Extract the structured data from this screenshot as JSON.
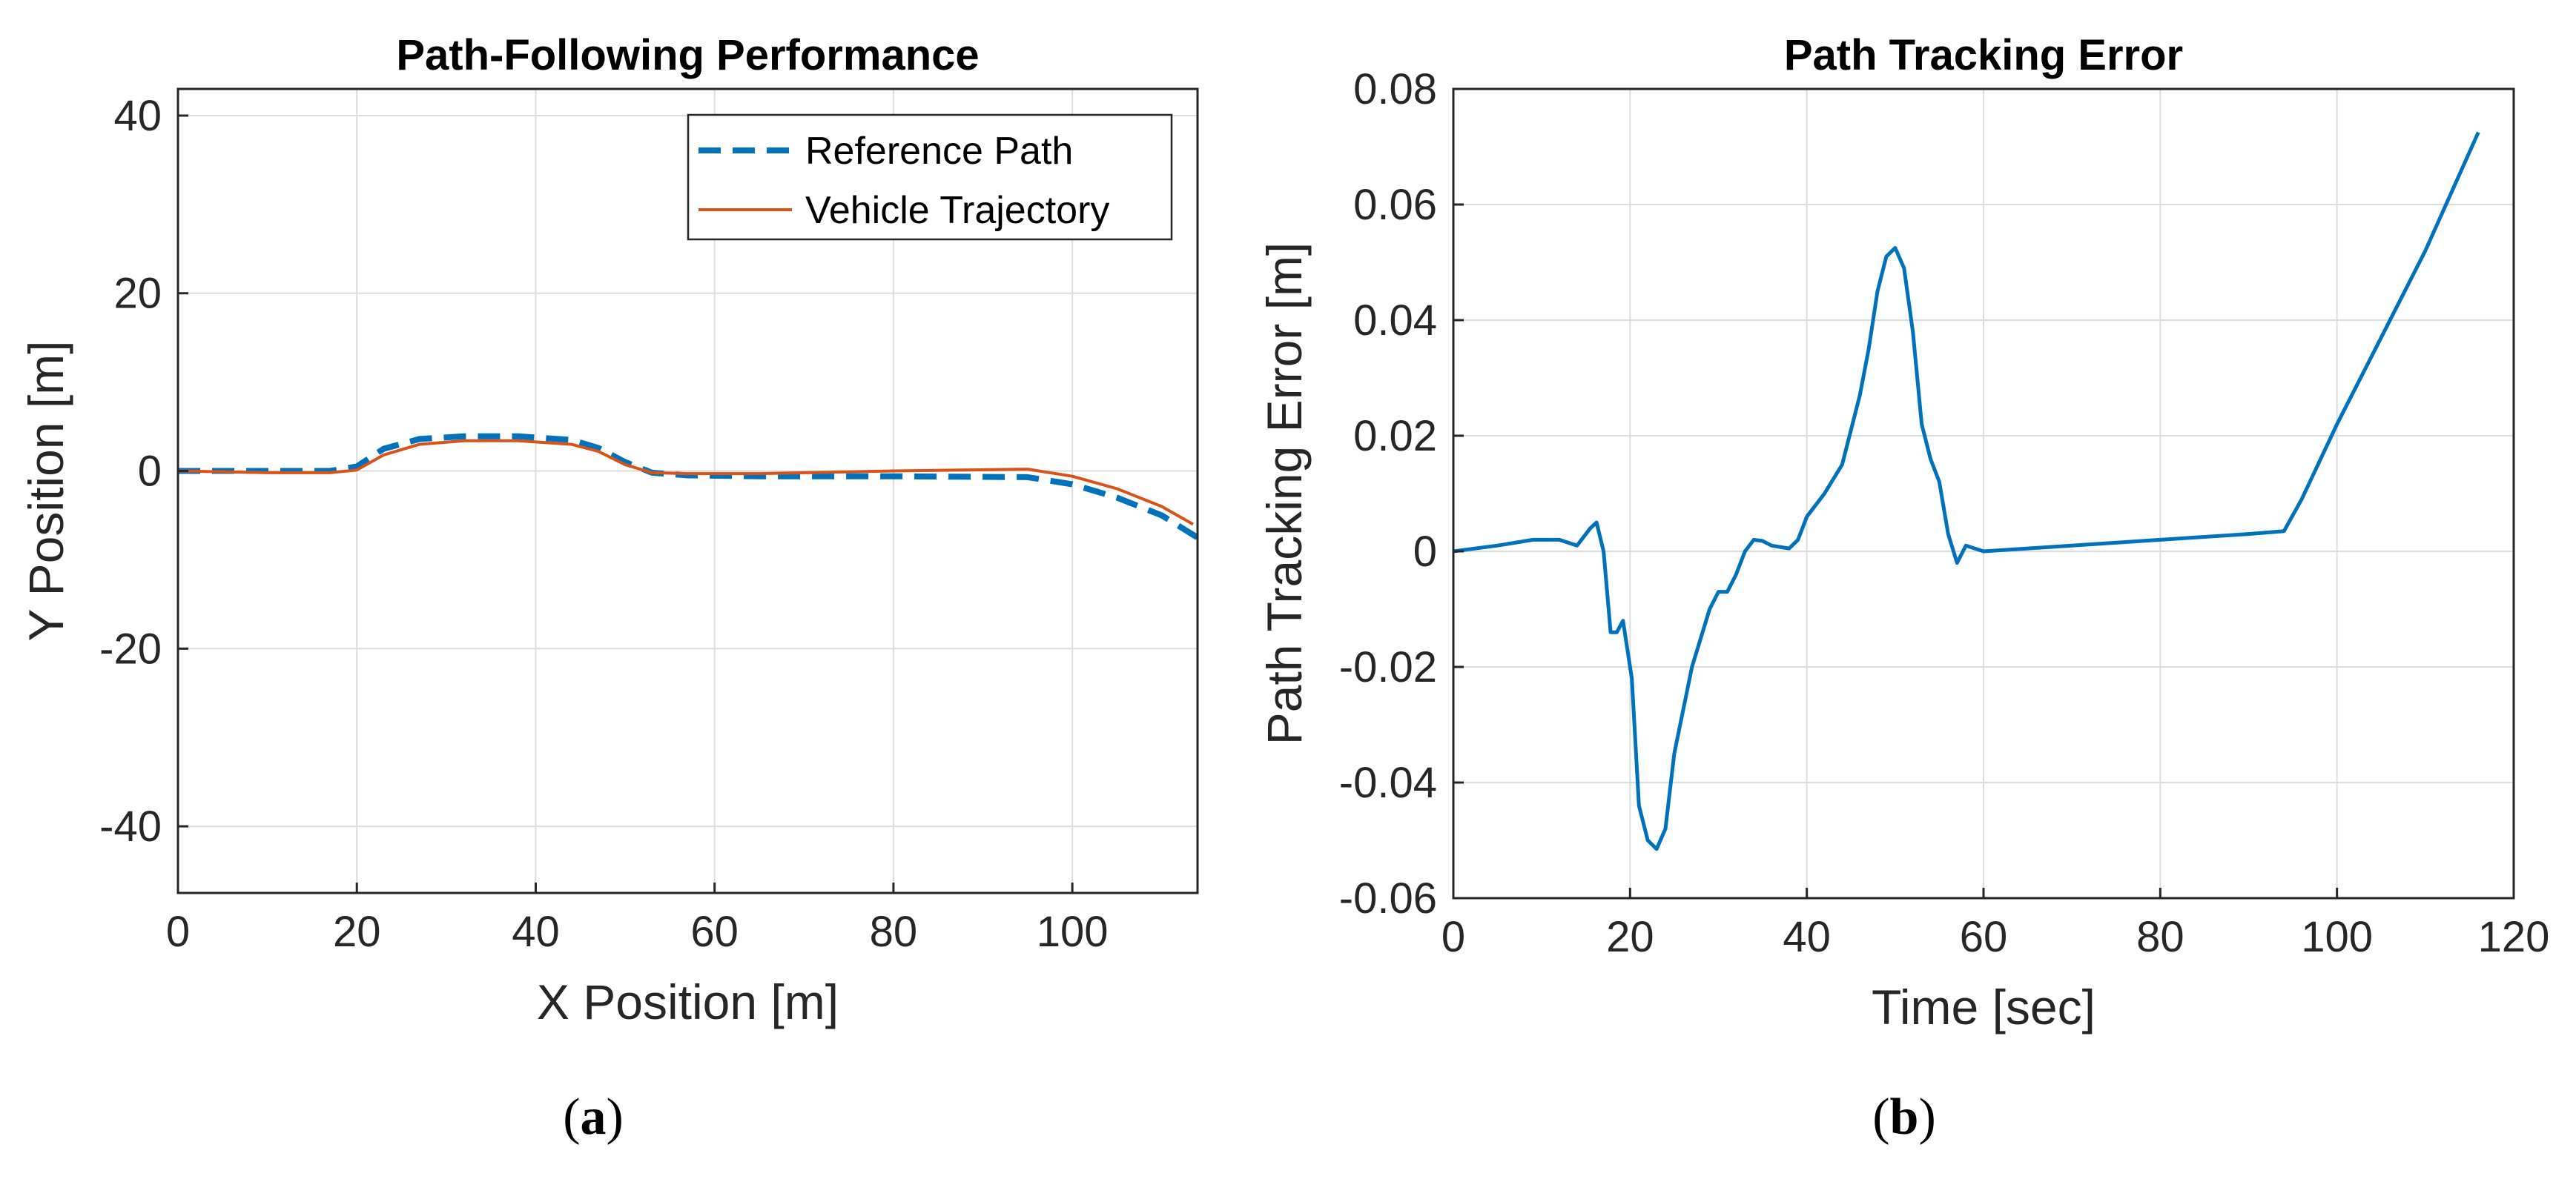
{
  "colors": {
    "reference": "#0072BD",
    "trajectory": "#D95319",
    "error": "#0072BD"
  },
  "panels": {
    "a": {
      "label": "a"
    },
    "b": {
      "label": "b"
    }
  },
  "chart_data": [
    {
      "type": "line",
      "title": "Path-Following Performance",
      "xlabel": "X Position [m]",
      "ylabel": "Y Position [m]",
      "xlim": [
        0,
        114
      ],
      "ylim": [
        -47.5,
        43
      ],
      "xticks": [
        0,
        20,
        40,
        60,
        80,
        100
      ],
      "yticks": [
        -40,
        -20,
        0,
        20,
        40
      ],
      "xtick_labels": [
        "0",
        "20",
        "40",
        "60",
        "80",
        "100"
      ],
      "ytick_labels": [
        "-40",
        "-20",
        "0",
        "20",
        "40"
      ],
      "grid": true,
      "legend_position": "top-right",
      "series": [
        {
          "name": "Reference Path",
          "style": "dashed",
          "x": [
            0,
            10,
            17,
            20,
            23,
            27,
            32,
            38,
            44,
            47,
            50,
            53,
            57,
            65,
            80,
            95,
            100,
            105,
            110,
            114
          ],
          "y": [
            0,
            0,
            0,
            0.5,
            2.5,
            3.6,
            3.9,
            3.9,
            3.5,
            2.6,
            1,
            -0.2,
            -0.5,
            -0.6,
            -0.6,
            -0.7,
            -1.5,
            -3,
            -5,
            -7.5
          ]
        },
        {
          "name": "Vehicle Trajectory",
          "style": "solid",
          "x": [
            0,
            10,
            17,
            20,
            23,
            27,
            32,
            38,
            44,
            47,
            50,
            53,
            57,
            65,
            80,
            95,
            100,
            105,
            110,
            113.5
          ],
          "y": [
            0,
            -0.2,
            -0.2,
            0.1,
            1.8,
            3.0,
            3.4,
            3.4,
            3.0,
            2.2,
            0.7,
            -0.2,
            -0.3,
            -0.3,
            0.0,
            0.2,
            -0.6,
            -2.0,
            -4.0,
            -6.0
          ]
        }
      ]
    },
    {
      "type": "line",
      "title": "Path Tracking Error",
      "xlabel": "Time [sec]",
      "ylabel": "Path Tracking Error [m]",
      "xlim": [
        0,
        120
      ],
      "ylim": [
        -0.06,
        0.08
      ],
      "xticks": [
        0,
        20,
        40,
        60,
        80,
        100,
        120
      ],
      "yticks": [
        -0.06,
        -0.04,
        -0.02,
        0,
        0.02,
        0.04,
        0.06,
        0.08
      ],
      "xtick_labels": [
        "0",
        "20",
        "40",
        "60",
        "80",
        "100",
        "120"
      ],
      "ytick_labels": [
        "-0.06",
        "-0.04",
        "-0.02",
        "0",
        "0.02",
        "0.04",
        "0.06",
        "0.08"
      ],
      "grid": true,
      "series": [
        {
          "name": "Path Tracking Error",
          "x": [
            0,
            5,
            9,
            12,
            14,
            15.5,
            16.2,
            17,
            17.8,
            18.5,
            19.2,
            20.2,
            21,
            22,
            23,
            24,
            25,
            27,
            29,
            30,
            31,
            32,
            33,
            34,
            35,
            36,
            38,
            39,
            40,
            42,
            44,
            46,
            47,
            48,
            49,
            50,
            51,
            52,
            53,
            54,
            55,
            56,
            57,
            58,
            60,
            65,
            70,
            80,
            90,
            94,
            96,
            100,
            105,
            110,
            116
          ],
          "y": [
            0,
            0.001,
            0.002,
            0.002,
            0.001,
            0.004,
            0.005,
            0.0,
            -0.014,
            -0.014,
            -0.012,
            -0.022,
            -0.044,
            -0.05,
            -0.0515,
            -0.048,
            -0.035,
            -0.02,
            -0.01,
            -0.007,
            -0.007,
            -0.004,
            0.0,
            0.002,
            0.0018,
            0.001,
            0.0005,
            0.002,
            0.006,
            0.01,
            0.015,
            0.027,
            0.035,
            0.045,
            0.051,
            0.0525,
            0.049,
            0.038,
            0.022,
            0.016,
            0.012,
            0.003,
            -0.002,
            0.001,
            0.0,
            0.0005,
            0.001,
            0.002,
            0.003,
            0.0035,
            0.009,
            0.022,
            0.037,
            0.052,
            0.0725
          ]
        }
      ]
    }
  ]
}
